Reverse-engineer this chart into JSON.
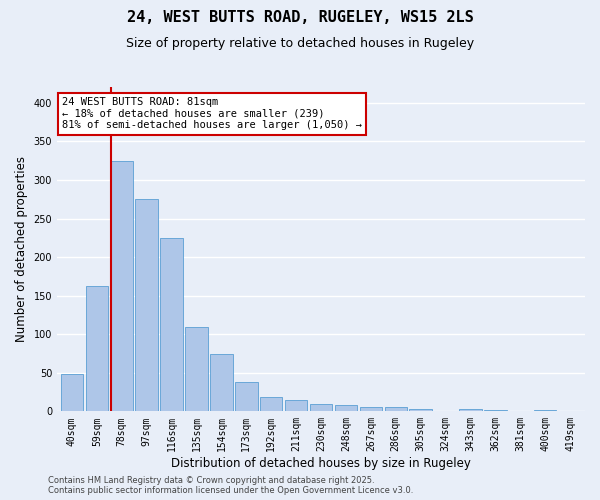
{
  "title": "24, WEST BUTTS ROAD, RUGELEY, WS15 2LS",
  "subtitle": "Size of property relative to detached houses in Rugeley",
  "xlabel": "Distribution of detached houses by size in Rugeley",
  "ylabel": "Number of detached properties",
  "categories": [
    "40sqm",
    "59sqm",
    "78sqm",
    "97sqm",
    "116sqm",
    "135sqm",
    "154sqm",
    "173sqm",
    "192sqm",
    "211sqm",
    "230sqm",
    "248sqm",
    "267sqm",
    "286sqm",
    "305sqm",
    "324sqm",
    "343sqm",
    "362sqm",
    "381sqm",
    "400sqm",
    "419sqm"
  ],
  "values": [
    48,
    163,
    325,
    275,
    225,
    110,
    75,
    38,
    18,
    15,
    10,
    8,
    5,
    5,
    3,
    0,
    3,
    2,
    0,
    2,
    1
  ],
  "bar_color": "#aec6e8",
  "bar_edge_color": "#5a9fd4",
  "highlight_index": 2,
  "highlight_line_color": "#cc0000",
  "annotation_text": "24 WEST BUTTS ROAD: 81sqm\n← 18% of detached houses are smaller (239)\n81% of semi-detached houses are larger (1,050) →",
  "annotation_box_color": "#ffffff",
  "annotation_box_edge_color": "#cc0000",
  "ylim": [
    0,
    420
  ],
  "yticks": [
    0,
    50,
    100,
    150,
    200,
    250,
    300,
    350,
    400
  ],
  "footer_text": "Contains HM Land Registry data © Crown copyright and database right 2025.\nContains public sector information licensed under the Open Government Licence v3.0.",
  "background_color": "#e8eef8",
  "grid_color": "#ffffff",
  "title_fontsize": 11,
  "subtitle_fontsize": 9,
  "axis_label_fontsize": 8.5,
  "tick_fontsize": 7,
  "annotation_fontsize": 7.5,
  "footer_fontsize": 6
}
